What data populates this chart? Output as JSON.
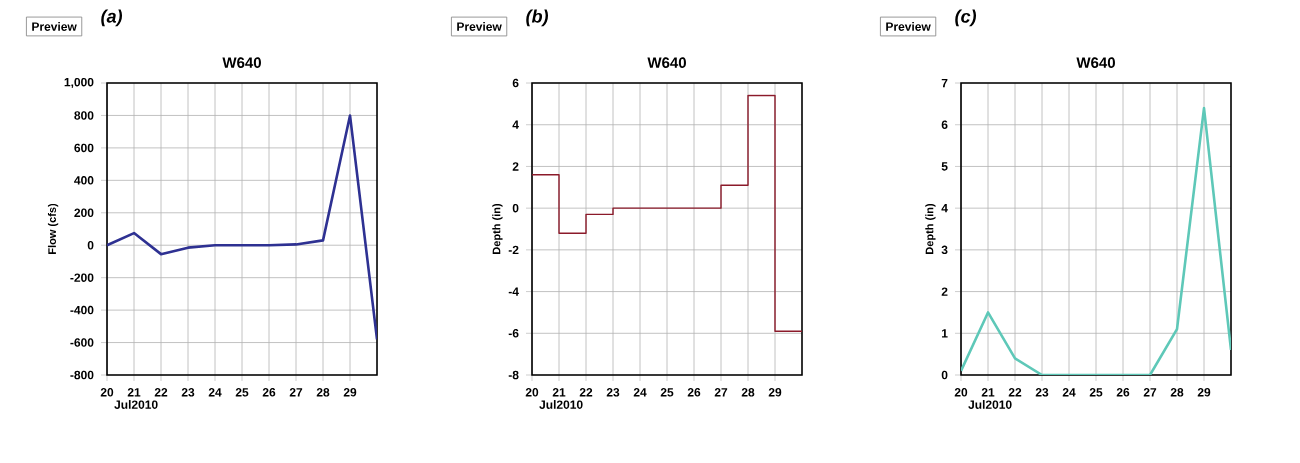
{
  "chart_data": [
    {
      "type": "line",
      "title": "W640",
      "xlabel": "Jul2010",
      "ylabel": "Flow (cfs)",
      "annotations": [
        "Preview",
        "(a)"
      ],
      "x": [
        20,
        21,
        22,
        23,
        24,
        25,
        26,
        27,
        28,
        29,
        30
      ],
      "series": [
        {
          "color": "#2e3192",
          "values": [
            0,
            75,
            -55,
            -15,
            0,
            0,
            0,
            5,
            30,
            800,
            -580
          ]
        }
      ],
      "xlim": [
        20,
        30
      ],
      "xticks": [
        20,
        21,
        22,
        23,
        24,
        25,
        26,
        27,
        28,
        29
      ],
      "ylim": [
        -800,
        1000
      ],
      "yticks": [
        -800,
        -600,
        -400,
        -200,
        0,
        200,
        400,
        600,
        800,
        {
          "value": 1000,
          "label": "1,000"
        }
      ],
      "grid": true,
      "marker": "none",
      "line_style": "solid"
    },
    {
      "type": "step",
      "title": "W640",
      "xlabel": "Jul2010",
      "ylabel": "Depth (in)",
      "annotations": [
        "Preview",
        "(b)"
      ],
      "x": [
        20,
        21,
        22,
        23,
        24,
        25,
        26,
        27,
        28,
        29,
        30
      ],
      "series": [
        {
          "color": "#8b1a2a",
          "values": [
            1.6,
            -1.2,
            -0.3,
            0,
            0,
            0,
            0,
            1.1,
            5.4,
            -5.9,
            -5.9
          ]
        }
      ],
      "xlim": [
        20,
        30
      ],
      "xticks": [
        20,
        21,
        22,
        23,
        24,
        25,
        26,
        27,
        28,
        29
      ],
      "ylim": [
        -8,
        6
      ],
      "yticks": [
        -8,
        -6,
        -4,
        -2,
        0,
        2,
        4,
        6
      ],
      "grid": true,
      "marker": "none",
      "line_style": "solid"
    },
    {
      "type": "line",
      "title": "W640",
      "xlabel": "Jul2010",
      "ylabel": "Depth (in)",
      "annotations": [
        "Preview",
        "(c)"
      ],
      "x": [
        20,
        21,
        22,
        23,
        24,
        25,
        26,
        27,
        28,
        29,
        30
      ],
      "series": [
        {
          "color": "#5ec8b8",
          "values": [
            0.1,
            1.5,
            0.4,
            0,
            0,
            0,
            0,
            0,
            1.1,
            6.4,
            0.6
          ]
        }
      ],
      "xlim": [
        20,
        30
      ],
      "xticks": [
        20,
        21,
        22,
        23,
        24,
        25,
        26,
        27,
        28,
        29
      ],
      "ylim": [
        0,
        7
      ],
      "yticks": [
        0,
        1,
        2,
        3,
        4,
        5,
        6,
        7
      ],
      "grid": true,
      "marker": "none",
      "line_style": "solid"
    }
  ]
}
